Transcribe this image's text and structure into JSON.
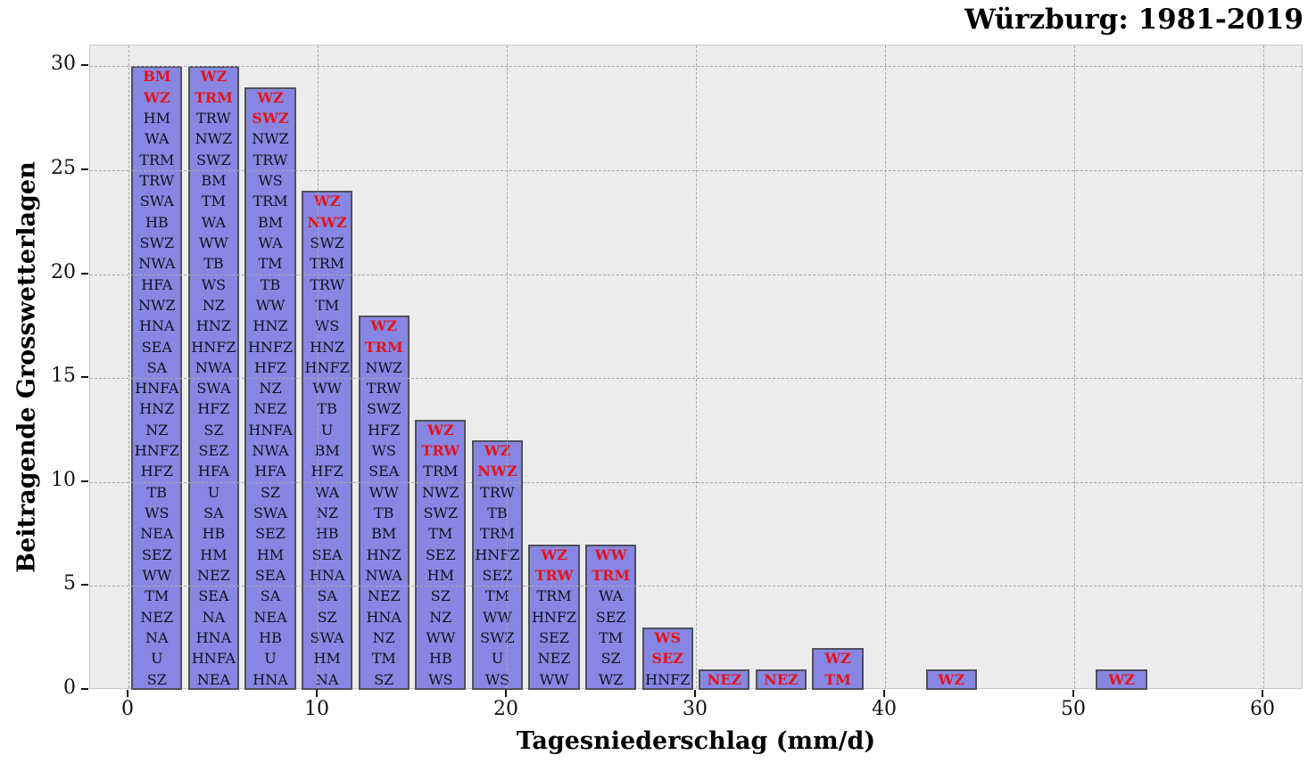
{
  "title": "Würzburg: 1981-2019",
  "x_axis_label": "Tagesniederschlag (mm/d)",
  "y_axis_label": "Beitragende Grosswetterlagen",
  "colors": {
    "bar_fill": "#8787e3",
    "bar_border": "#50505a",
    "label_text": "#10101e",
    "highlight_text": "#e61217",
    "plot_background": "#ececec",
    "gridline": "#a9a9a9",
    "figure_background": "#ffffff"
  },
  "chart_data": {
    "type": "bar",
    "title": "Würzburg: 1981-2019",
    "xlabel": "Tagesniederschlag (mm/d)",
    "ylabel": "Beitragende Grosswetterlagen",
    "xlim": [
      -2.03,
      62.12
    ],
    "ylim": [
      0,
      31
    ],
    "x_ticks": [
      0,
      10,
      20,
      30,
      40,
      50,
      60
    ],
    "y_ticks": [
      0,
      5,
      10,
      15,
      20,
      25,
      30
    ],
    "grid": "dashed, drawn over bars",
    "legend": "none",
    "bin_width": 3,
    "bar_rel_width": 0.9,
    "bars": [
      {
        "bin_start": 0,
        "value": 30,
        "red_top_count": 2,
        "labels": [
          "BM",
          "WZ",
          "HM",
          "WA",
          "TRM",
          "TRW",
          "SWA",
          "HB",
          "SWZ",
          "NWA",
          "HFA",
          "NWZ",
          "HNA",
          "SEA",
          "SA",
          "HNFA",
          "HNZ",
          "NZ",
          "HNFZ",
          "HFZ",
          "TB",
          "WS",
          "NEA",
          "SEZ",
          "WW",
          "TM",
          "NEZ",
          "NA",
          "U",
          "SZ"
        ]
      },
      {
        "bin_start": 3,
        "value": 30,
        "red_top_count": 2,
        "labels": [
          "WZ",
          "TRM",
          "TRW",
          "NWZ",
          "SWZ",
          "BM",
          "TM",
          "WA",
          "WW",
          "TB",
          "WS",
          "NZ",
          "HNZ",
          "HNFZ",
          "NWA",
          "SWA",
          "HFZ",
          "SZ",
          "SEZ",
          "HFA",
          "U",
          "SA",
          "HB",
          "HM",
          "NEZ",
          "SEA",
          "NA",
          "HNA",
          "HNFA",
          "NEA"
        ]
      },
      {
        "bin_start": 6,
        "value": 29,
        "red_top_count": 2,
        "labels": [
          "WZ",
          "SWZ",
          "NWZ",
          "TRW",
          "WS",
          "TRM",
          "BM",
          "WA",
          "TM",
          "TB",
          "WW",
          "HNZ",
          "HNFZ",
          "HFZ",
          "NZ",
          "NEZ",
          "HNFA",
          "NWA",
          "HFA",
          "SZ",
          "SWA",
          "SEZ",
          "HM",
          "SEA",
          "SA",
          "NEA",
          "HB",
          "U",
          "HNA"
        ]
      },
      {
        "bin_start": 9,
        "value": 24,
        "red_top_count": 2,
        "labels": [
          "WZ",
          "NWZ",
          "SWZ",
          "TRM",
          "TRW",
          "TM",
          "WS",
          "HNZ",
          "HNFZ",
          "WW",
          "TB",
          "U",
          "BM",
          "HFZ",
          "WA",
          "NZ",
          "HB",
          "SEA",
          "HNA",
          "SA",
          "SZ",
          "SWA",
          "HM",
          "NA"
        ]
      },
      {
        "bin_start": 12,
        "value": 18,
        "red_top_count": 2,
        "labels": [
          "WZ",
          "TRM",
          "NWZ",
          "TRW",
          "SWZ",
          "HFZ",
          "WS",
          "SEA",
          "WW",
          "TB",
          "BM",
          "HNZ",
          "NWA",
          "NEZ",
          "HNA",
          "NZ",
          "TM",
          "SZ"
        ]
      },
      {
        "bin_start": 15,
        "value": 13,
        "red_top_count": 2,
        "labels": [
          "WZ",
          "TRW",
          "TRM",
          "NWZ",
          "SWZ",
          "TM",
          "SEZ",
          "HM",
          "SZ",
          "NZ",
          "WW",
          "HB",
          "WS"
        ]
      },
      {
        "bin_start": 18,
        "value": 12,
        "red_top_count": 2,
        "labels": [
          "WZ",
          "NWZ",
          "TRW",
          "TB",
          "TRM",
          "HNFZ",
          "SEZ",
          "TM",
          "WW",
          "SWZ",
          "U",
          "WS"
        ]
      },
      {
        "bin_start": 21,
        "value": 7,
        "red_top_count": 2,
        "labels": [
          "WZ",
          "TRW",
          "TRM",
          "HNFZ",
          "SEZ",
          "NEZ",
          "WW"
        ]
      },
      {
        "bin_start": 24,
        "value": 7,
        "red_top_count": 2,
        "labels": [
          "WW",
          "TRM",
          "WA",
          "SEZ",
          "TM",
          "SZ",
          "WZ"
        ]
      },
      {
        "bin_start": 27,
        "value": 3,
        "red_top_count": 2,
        "labels": [
          "WS",
          "SEZ",
          "HNFZ"
        ]
      },
      {
        "bin_start": 30,
        "value": 1,
        "red_top_count": 1,
        "labels": [
          "NEZ"
        ]
      },
      {
        "bin_start": 33,
        "value": 1,
        "red_top_count": 1,
        "labels": [
          "NEZ"
        ]
      },
      {
        "bin_start": 36,
        "value": 2,
        "red_top_count": 2,
        "labels": [
          "WZ",
          "TM"
        ]
      },
      {
        "bin_start": 42,
        "value": 1,
        "red_top_count": 1,
        "labels": [
          "WZ"
        ]
      },
      {
        "bin_start": 51,
        "value": 1,
        "red_top_count": 1,
        "labels": [
          "WZ"
        ]
      }
    ]
  }
}
